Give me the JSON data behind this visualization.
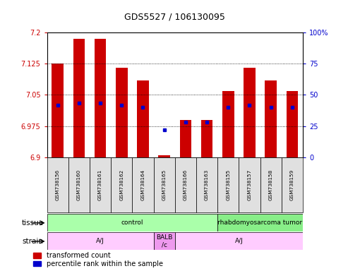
{
  "title": "GDS5527 / 106130095",
  "samples": [
    "GSM738156",
    "GSM738160",
    "GSM738161",
    "GSM738162",
    "GSM738164",
    "GSM738165",
    "GSM738166",
    "GSM738163",
    "GSM738155",
    "GSM738157",
    "GSM738158",
    "GSM738159"
  ],
  "bar_values": [
    7.125,
    7.185,
    7.185,
    7.115,
    7.085,
    6.905,
    6.99,
    6.99,
    7.06,
    7.115,
    7.085,
    7.06
  ],
  "bar_base": 6.9,
  "blue_dot_values": [
    7.025,
    7.03,
    7.03,
    7.025,
    7.02,
    6.965,
    6.985,
    6.985,
    7.02,
    7.025,
    7.02,
    7.02
  ],
  "ylim_left": [
    6.9,
    7.2
  ],
  "ylim_right": [
    0,
    100
  ],
  "yticks_left": [
    6.9,
    6.975,
    7.05,
    7.125,
    7.2
  ],
  "yticks_right": [
    0,
    25,
    50,
    75,
    100
  ],
  "ytick_labels_left": [
    "6.9",
    "6.975",
    "7.05",
    "7.125",
    "7.2"
  ],
  "ytick_labels_right": [
    "0",
    "25",
    "50",
    "75",
    "100%"
  ],
  "bar_color": "#cc0000",
  "dot_color": "#0000cc",
  "tissue_groups": [
    {
      "label": "control",
      "start": 0,
      "end": 8,
      "color": "#aaffaa"
    },
    {
      "label": "rhabdomyosarcoma tumor",
      "start": 8,
      "end": 12,
      "color": "#88ee88"
    }
  ],
  "strain_groups": [
    {
      "label": "A/J",
      "start": 0,
      "end": 5,
      "color": "#ffccff"
    },
    {
      "label": "BALB\n/c",
      "start": 5,
      "end": 6,
      "color": "#ee99ee"
    },
    {
      "label": "A/J",
      "start": 6,
      "end": 12,
      "color": "#ffccff"
    }
  ],
  "legend_red_label": "transformed count",
  "legend_blue_label": "percentile rank within the sample",
  "tissue_label": "tissue",
  "strain_label": "strain",
  "background_color": "#ffffff",
  "tick_color_left": "#cc0000",
  "tick_color_right": "#0000cc"
}
